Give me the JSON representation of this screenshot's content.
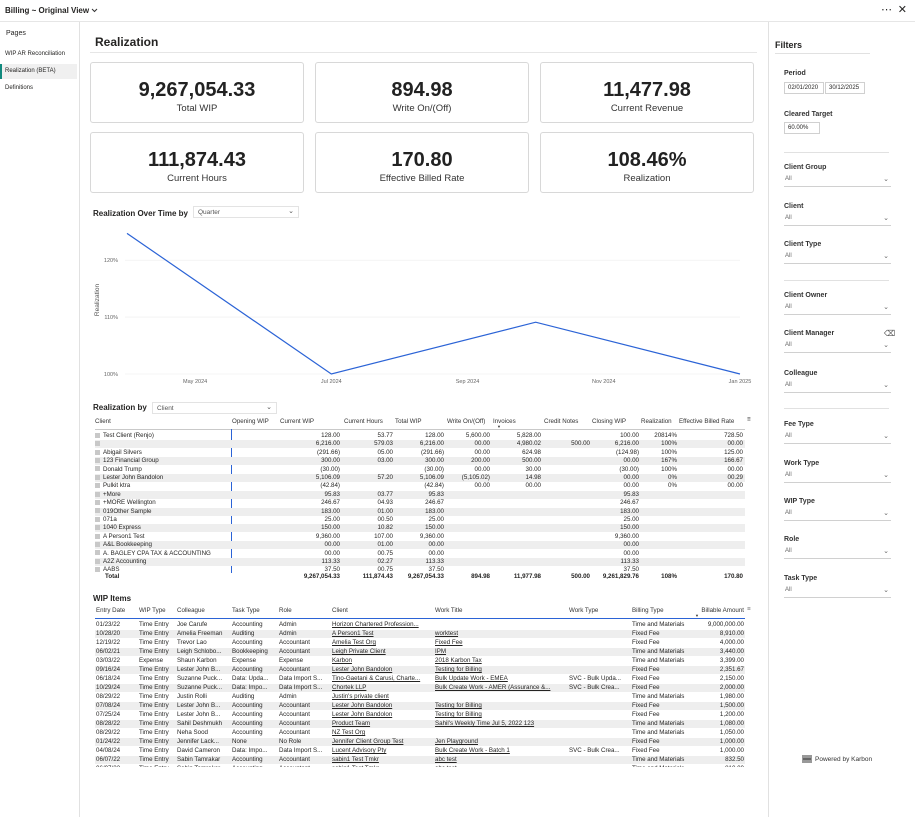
{
  "app": {
    "title": "Billing ~ Original View",
    "more_glyph": "⋯",
    "close_glyph": "✕"
  },
  "pages": {
    "title": "Pages",
    "items": [
      {
        "label": "WIP AR Reconciliation"
      },
      {
        "label": "Realization (BETA)"
      },
      {
        "label": "Definitions"
      }
    ]
  },
  "report": {
    "title": "Realization"
  },
  "kpis": [
    {
      "value": "9,267,054.33",
      "label": "Total WIP"
    },
    {
      "value": "894.98",
      "label": "Write On/(Off)"
    },
    {
      "value": "11,477.98",
      "label": "Current Revenue"
    },
    {
      "value": "111,874.43",
      "label": "Current Hours"
    },
    {
      "value": "170.80",
      "label": "Effective Billed Rate"
    },
    {
      "value": "108.46%",
      "label": "Realization"
    }
  ],
  "realization_chart": {
    "section_label": "Realization Over Time by",
    "period_select": "Quarter"
  },
  "chart_data": {
    "type": "line",
    "title": "Realization Over Time by Quarter",
    "ylabel": "Realization",
    "xlabel": "",
    "x_ticks": [
      "May 2024",
      "Jul 2024",
      "Sep 2024",
      "Nov 2024",
      "Jan 2025"
    ],
    "y_ticks": [
      "100%",
      "110%",
      "120%"
    ],
    "ylim": [
      100,
      126
    ],
    "series": [
      {
        "name": "Realization",
        "color": "#2b63d6",
        "points": [
          {
            "x": "Apr 2024",
            "y": 124.7
          },
          {
            "x": "Jul 2024",
            "y": 100.0
          },
          {
            "x": "Oct 2024",
            "y": 109.1
          },
          {
            "x": "Jan 2025",
            "y": 100.0
          }
        ]
      }
    ]
  },
  "realization_by": {
    "section_label": "Realization by",
    "group_select": "Client",
    "columns": [
      "Client",
      "Opening WIP",
      "Current WIP",
      "Current Hours",
      "Total WIP",
      "Write On/(Off)",
      "Invoices",
      "Credit Notes",
      "Closing WIP",
      "Realization",
      "Effective Billed Rate"
    ],
    "rows": [
      [
        "Test Client (Renjo)",
        "",
        "128.00",
        "53.77",
        "128.00",
        "5,600.00",
        "5,828.00",
        "",
        "100.00",
        "20814%",
        "728.50"
      ],
      [
        "",
        "",
        "6,216.00",
        "579.03",
        "6,216.00",
        "00.00",
        "4,980.02",
        "500.00",
        "6,216.00",
        "100%",
        "00.00"
      ],
      [
        "Abigail Silvers",
        "",
        "(291.66)",
        "05.00",
        "(291.66)",
        "00.00",
        "624.98",
        "",
        "(124.98)",
        "100%",
        "125.00"
      ],
      [
        "123 Financial Group",
        "",
        "300.00",
        "03.00",
        "300.00",
        "200.00",
        "500.00",
        "",
        "00.00",
        "167%",
        "166.67"
      ],
      [
        "Donald Trump",
        "",
        "(30.00)",
        "",
        "(30.00)",
        "00.00",
        "30.00",
        "",
        "(30.00)",
        "100%",
        "00.00"
      ],
      [
        "Lester John Bandolon",
        "",
        "5,106.09",
        "57.20",
        "5,106.09",
        "(5,105.02)",
        "14.98",
        "",
        "00.00",
        "0%",
        "00.29"
      ],
      [
        "Pulkit ktra",
        "",
        "(42.84)",
        "",
        "(42.84)",
        "00.00",
        "00.00",
        "",
        "00.00",
        "0%",
        "00.00"
      ],
      [
        "+More",
        "",
        "95.83",
        "03.77",
        "95.83",
        "",
        "",
        "",
        "95.83",
        "",
        ""
      ],
      [
        "+MORE Wellington",
        "",
        "246.67",
        "04.93",
        "246.67",
        "",
        "",
        "",
        "246.67",
        "",
        ""
      ],
      [
        "019Other Sample",
        "",
        "183.00",
        "01.00",
        "183.00",
        "",
        "",
        "",
        "183.00",
        "",
        ""
      ],
      [
        "071a",
        "",
        "25.00",
        "00.50",
        "25.00",
        "",
        "",
        "",
        "25.00",
        "",
        ""
      ],
      [
        "1040 Express",
        "",
        "150.00",
        "10.82",
        "150.00",
        "",
        "",
        "",
        "150.00",
        "",
        ""
      ],
      [
        "A Person1 Test",
        "",
        "9,360.00",
        "107.00",
        "9,360.00",
        "",
        "",
        "",
        "9,360.00",
        "",
        ""
      ],
      [
        "A&L Bookkeeping",
        "",
        "00.00",
        "01.00",
        "00.00",
        "",
        "",
        "",
        "00.00",
        "",
        ""
      ],
      [
        "A. BAGLEY CPA TAX & ACCOUNTING",
        "",
        "00.00",
        "00.75",
        "00.00",
        "",
        "",
        "",
        "00.00",
        "",
        ""
      ],
      [
        "A2Z Accounting",
        "",
        "113.33",
        "02.27",
        "113.33",
        "",
        "",
        "",
        "113.33",
        "",
        ""
      ],
      [
        "AABS",
        "",
        "37.50",
        "00.75",
        "37.50",
        "",
        "",
        "",
        "37.50",
        "",
        ""
      ]
    ],
    "total": [
      "Total",
      "",
      "9,267,054.33",
      "111,874.43",
      "9,267,054.33",
      "894.98",
      "11,977.98",
      "500.00",
      "9,261,829.76",
      "108%",
      "170.80"
    ]
  },
  "wip_items": {
    "section_label": "WIP Items",
    "columns": [
      "Entry Date",
      "WIP Type",
      "Colleague",
      "Task Type",
      "Role",
      "Client",
      "Work Title",
      "Work Type",
      "Billing Type",
      "Billable Amount"
    ],
    "rows": [
      [
        "01/23/22",
        "Time Entry",
        "Joe Carufe",
        "Accounting",
        "Admin",
        "Horizon Chartered Profession...",
        "",
        "",
        "Time and Materials",
        "9,000,000.00"
      ],
      [
        "10/28/20",
        "Time Entry",
        "Amelia Freeman",
        "Auditing",
        "Admin",
        "A Person1 Test",
        "worktest",
        "",
        "Fixed Fee",
        "8,910.00"
      ],
      [
        "12/19/22",
        "Time Entry",
        "Trevor Lao",
        "Accounting",
        "Accountant",
        "Amelia Test Org",
        "Fixed Fee",
        "",
        "Fixed Fee",
        "4,000.00"
      ],
      [
        "06/02/21",
        "Time Entry",
        "Leigh Schlobo...",
        "Bookkeeping",
        "Accountant",
        "Leigh Private Client",
        "IPM",
        "",
        "Time and Materials",
        "3,440.00"
      ],
      [
        "03/03/22",
        "Expense",
        "Shaun Karbon",
        "Expense",
        "Expense",
        "Karbon",
        "2018 Karbon Tax",
        "",
        "Time and Materials",
        "3,399.00"
      ],
      [
        "09/16/24",
        "Time Entry",
        "Lester John B...",
        "Accounting",
        "Accountant",
        "Lester John Bandolon",
        "Testing for Billing",
        "",
        "Fixed Fee",
        "2,351.67"
      ],
      [
        "06/18/24",
        "Time Entry",
        "Suzanne Puck...",
        "Data: Upda...",
        "Data Import S...",
        "Tino-Gaetani & Carusi, Charte...",
        "Bulk Update Work - EMEA",
        "SVC - Bulk Upda...",
        "Fixed Fee",
        "2,150.00"
      ],
      [
        "10/29/24",
        "Time Entry",
        "Suzanne Puck...",
        "Data: Impo...",
        "Data Import S...",
        "Chortek LLP",
        "Bulk Create Work - AMER (Assurance &...",
        "SVC - Bulk Crea...",
        "Fixed Fee",
        "2,000.00"
      ],
      [
        "08/29/22",
        "Time Entry",
        "Justin Rolli",
        "Auditing",
        "Admin",
        "Justin's private client",
        "",
        "",
        "Time and Materials",
        "1,980.00"
      ],
      [
        "07/08/24",
        "Time Entry",
        "Lester John B...",
        "Accounting",
        "Accountant",
        "Lester John Bandolon",
        "Testing for Billing",
        "",
        "Fixed Fee",
        "1,500.00"
      ],
      [
        "07/25/24",
        "Time Entry",
        "Lester John B...",
        "Accounting",
        "Accountant",
        "Lester John Bandolon",
        "Testing for Billing",
        "",
        "Fixed Fee",
        "1,200.00"
      ],
      [
        "08/28/22",
        "Time Entry",
        "Sahil Deshmukh",
        "Accounting",
        "Accountant",
        "Product Team",
        "Sahil's Weekly Time Jul 5, 2022  123",
        "",
        "Time and Materials",
        "1,080.00"
      ],
      [
        "08/29/22",
        "Time Entry",
        "Neha Sood",
        "Accounting",
        "Accountant",
        "NZ Test Org",
        "",
        "",
        "Time and Materials",
        "1,050.00"
      ],
      [
        "01/24/22",
        "Time Entry",
        "Jennifer Lack...",
        "None",
        "No Role",
        "Jennifer Client Group Test",
        "Jen Playground",
        "",
        "Fixed Fee",
        "1,000.00"
      ],
      [
        "04/08/24",
        "Time Entry",
        "David Cameron",
        "Data: Impo...",
        "Data Import S...",
        "Lucent Advisory Pty",
        "Bulk Create Work - Batch 1",
        "SVC - Bulk Crea...",
        "Fixed Fee",
        "1,000.00"
      ],
      [
        "06/07/22",
        "Time Entry",
        "Sabin Tamrakar",
        "Accounting",
        "Accountant",
        "sabin1 Test Tmkr",
        "abc test",
        "",
        "Time and Materials",
        "832.50"
      ],
      [
        "06/07/22",
        "Time Entry",
        "Sabin Tamrakar",
        "Accounting",
        "Accountant",
        "sabin1 Test Tmkr",
        "abc test",
        "",
        "Time and Materials",
        "810.00"
      ]
    ]
  },
  "filters": {
    "title": "Filters",
    "period": {
      "label": "Period",
      "start": "02/01/2020",
      "end": "30/12/2025"
    },
    "cleared_target": {
      "label": "Cleared Target",
      "value": "60.00%"
    },
    "dropdowns": [
      {
        "label": "Client Group",
        "value": "All"
      },
      {
        "label": "Client",
        "value": "All"
      },
      {
        "label": "Client Type",
        "value": "All"
      },
      {
        "label": "Client Owner",
        "value": "All"
      },
      {
        "label": "Client Manager",
        "value": "All"
      },
      {
        "label": "Colleague",
        "value": "All"
      },
      {
        "label": "Fee Type",
        "value": "All"
      },
      {
        "label": "Work Type",
        "value": "All"
      },
      {
        "label": "WIP Type",
        "value": "All"
      },
      {
        "label": "Role",
        "value": "All"
      },
      {
        "label": "Task Type",
        "value": "All"
      }
    ],
    "powered_by": "Powered by Karbon"
  }
}
